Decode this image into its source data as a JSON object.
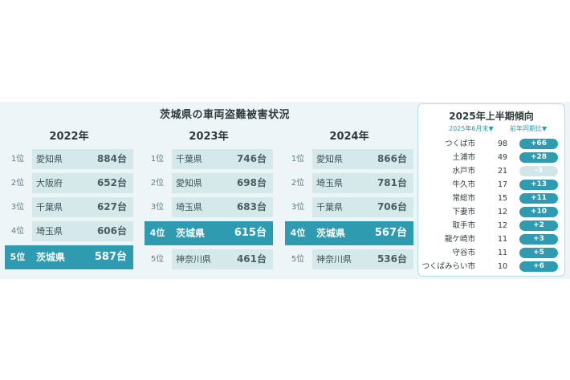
{
  "main_title": "茨城県の車両盗難被害状況",
  "years": [
    {
      "year": "2022年",
      "rows": [
        {
          "rank": "1位",
          "pref": "愛知県",
          "value": "884台",
          "highlight": false
        },
        {
          "rank": "2位",
          "pref": "大阪府",
          "value": "652台",
          "highlight": false
        },
        {
          "rank": "3位",
          "pref": "千葉県",
          "value": "627台",
          "highlight": false
        },
        {
          "rank": "4位",
          "pref": "埼玉県",
          "value": "606台",
          "highlight": false
        },
        {
          "rank": "5位",
          "pref": "茨城県",
          "value": "587台",
          "highlight": true
        }
      ]
    },
    {
      "year": "2023年",
      "rows": [
        {
          "rank": "1位",
          "pref": "千葉県",
          "value": "746台",
          "highlight": false
        },
        {
          "rank": "2位",
          "pref": "愛知県",
          "value": "698台",
          "highlight": false
        },
        {
          "rank": "3位",
          "pref": "埼玉県",
          "value": "683台",
          "highlight": false
        },
        {
          "rank": "4位",
          "pref": "茨城県",
          "value": "615台",
          "highlight": true
        },
        {
          "rank": "5位",
          "pref": "神奈川県",
          "value": "461台",
          "highlight": false
        }
      ]
    },
    {
      "year": "2024年",
      "rows": [
        {
          "rank": "1位",
          "pref": "愛知県",
          "value": "866台",
          "highlight": false
        },
        {
          "rank": "2位",
          "pref": "埼玉県",
          "value": "781台",
          "highlight": false
        },
        {
          "rank": "3位",
          "pref": "千葉県",
          "value": "706台",
          "highlight": false
        },
        {
          "rank": "4位",
          "pref": "茨城県",
          "value": "567台",
          "highlight": true
        },
        {
          "rank": "5位",
          "pref": "神奈川県",
          "value": "536台",
          "highlight": false
        }
      ]
    }
  ],
  "side": {
    "title": "2025年上半期傾向",
    "col_count": "2025年6月末▼",
    "col_diff": "前年同期比▼",
    "rows": [
      {
        "city": "つくば市",
        "count": "98",
        "diff": "+66",
        "negative": false
      },
      {
        "city": "土浦市",
        "count": "49",
        "diff": "+28",
        "negative": false
      },
      {
        "city": "水戸市",
        "count": "21",
        "diff": "-3",
        "negative": true
      },
      {
        "city": "牛久市",
        "count": "17",
        "diff": "+13",
        "negative": false
      },
      {
        "city": "常総市",
        "count": "15",
        "diff": "+11",
        "negative": false
      },
      {
        "city": "下妻市",
        "count": "12",
        "diff": "+10",
        "negative": false
      },
      {
        "city": "取手市",
        "count": "12",
        "diff": "+2",
        "negative": false
      },
      {
        "city": "龍ケ崎市",
        "count": "11",
        "diff": "+3",
        "negative": false
      },
      {
        "city": "守谷市",
        "count": "11",
        "diff": "+5",
        "negative": false
      },
      {
        "city": "つくばみらい市",
        "count": "10",
        "diff": "+6",
        "negative": false
      }
    ]
  },
  "colors": {
    "accent": "#2f9bb0",
    "bar": "#d5e8ea",
    "panel": "#eef5f6",
    "negative_pill": "#cfe6ea"
  }
}
